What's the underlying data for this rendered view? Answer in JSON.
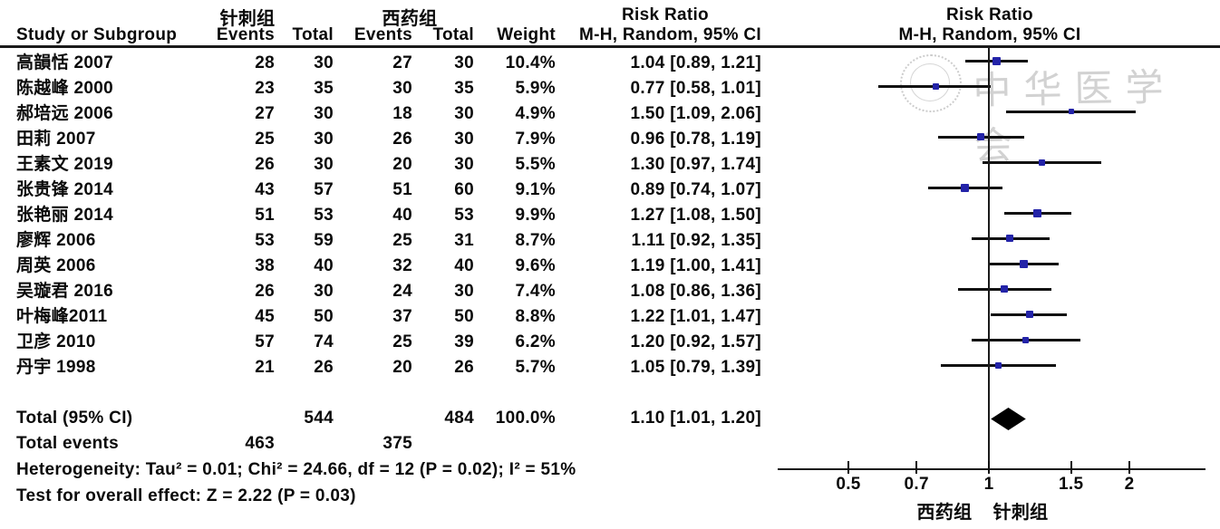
{
  "header": {
    "group1": "针刺组",
    "group2": "西药组",
    "study_col": "Study or Subgroup",
    "events_col": "Events",
    "total_col": "Total",
    "weight_col": "Weight",
    "risk_ratio_left": "Risk Ratio",
    "method_left": "M-H, Random, 95% CI",
    "risk_ratio_right": "Risk Ratio",
    "method_right": "M-H, Random, 95% CI"
  },
  "totals": {
    "label": "Total (95% CI)",
    "total1": "544",
    "total2": "484",
    "weight": "100.0%",
    "ci_text": "1.10 [1.01, 1.20]",
    "events_label": "Total events",
    "events1": "463",
    "events2": "375"
  },
  "footnotes": {
    "heterogeneity": "Heterogeneity: Tau² = 0.01; Chi² = 24.66, df = 12 (P = 0.02); I² = 51%",
    "overall_effect": "Test for overall effect: Z = 2.22 (P = 0.03)"
  },
  "axis": {
    "tick_labels": [
      "0.5",
      "0.7",
      "1",
      "1.5",
      "2"
    ],
    "favours_left": "西药组",
    "favours_right": "针刺组"
  },
  "watermark": {
    "text": "中华医学会",
    "seal": "chinese-medical-association-seal"
  },
  "colors": {
    "marker_blue": "#2323a8",
    "diamond_black": "#000000",
    "line_black": "#111111",
    "watermark_gray": "#d2d2d2"
  },
  "chart_data": {
    "type": "scatter",
    "subtype": "forest-plot-meta-analysis",
    "title": "Risk Ratio M-H, Random, 95% CI",
    "x_scale": "log",
    "x_ticks": [
      0.5,
      0.7,
      1,
      1.5,
      2
    ],
    "xlim": [
      0.35,
      2.9
    ],
    "legend_position": "none",
    "grid": false,
    "studies": [
      {
        "name": "高韻恬 2007",
        "events1": 28,
        "total1": 30,
        "events2": 27,
        "total2": 30,
        "weight": "10.4%",
        "weight_pct": 10.4,
        "rr": 1.04,
        "ci_low": 0.89,
        "ci_high": 1.21,
        "ci_text": "1.04 [0.89, 1.21]"
      },
      {
        "name": "陈越峰 2000",
        "events1": 23,
        "total1": 35,
        "events2": 30,
        "total2": 35,
        "weight": "5.9%",
        "weight_pct": 5.9,
        "rr": 0.77,
        "ci_low": 0.58,
        "ci_high": 1.01,
        "ci_text": "0.77 [0.58, 1.01]"
      },
      {
        "name": "郝培远 2006",
        "events1": 27,
        "total1": 30,
        "events2": 18,
        "total2": 30,
        "weight": "4.9%",
        "weight_pct": 4.9,
        "rr": 1.5,
        "ci_low": 1.09,
        "ci_high": 2.06,
        "ci_text": "1.50 [1.09, 2.06]"
      },
      {
        "name": "田莉 2007",
        "events1": 25,
        "total1": 30,
        "events2": 26,
        "total2": 30,
        "weight": "7.9%",
        "weight_pct": 7.9,
        "rr": 0.96,
        "ci_low": 0.78,
        "ci_high": 1.19,
        "ci_text": "0.96 [0.78, 1.19]"
      },
      {
        "name": "王素文 2019",
        "events1": 26,
        "total1": 30,
        "events2": 20,
        "total2": 30,
        "weight": "5.5%",
        "weight_pct": 5.5,
        "rr": 1.3,
        "ci_low": 0.97,
        "ci_high": 1.74,
        "ci_text": "1.30 [0.97, 1.74]"
      },
      {
        "name": "张贵锋 2014",
        "events1": 43,
        "total1": 57,
        "events2": 51,
        "total2": 60,
        "weight": "9.1%",
        "weight_pct": 9.1,
        "rr": 0.89,
        "ci_low": 0.74,
        "ci_high": 1.07,
        "ci_text": "0.89 [0.74, 1.07]"
      },
      {
        "name": "张艳丽 2014",
        "events1": 51,
        "total1": 53,
        "events2": 40,
        "total2": 53,
        "weight": "9.9%",
        "weight_pct": 9.9,
        "rr": 1.27,
        "ci_low": 1.08,
        "ci_high": 1.5,
        "ci_text": "1.27 [1.08, 1.50]"
      },
      {
        "name": "廖辉 2006",
        "events1": 53,
        "total1": 59,
        "events2": 25,
        "total2": 31,
        "weight": "8.7%",
        "weight_pct": 8.7,
        "rr": 1.11,
        "ci_low": 0.92,
        "ci_high": 1.35,
        "ci_text": "1.11 [0.92, 1.35]"
      },
      {
        "name": "周英 2006",
        "events1": 38,
        "total1": 40,
        "events2": 32,
        "total2": 40,
        "weight": "9.6%",
        "weight_pct": 9.6,
        "rr": 1.19,
        "ci_low": 1.0,
        "ci_high": 1.41,
        "ci_text": "1.19 [1.00, 1.41]"
      },
      {
        "name": "吴璇君 2016",
        "events1": 26,
        "total1": 30,
        "events2": 24,
        "total2": 30,
        "weight": "7.4%",
        "weight_pct": 7.4,
        "rr": 1.08,
        "ci_low": 0.86,
        "ci_high": 1.36,
        "ci_text": "1.08 [0.86, 1.36]"
      },
      {
        "name": "叶梅峰2011",
        "events1": 45,
        "total1": 50,
        "events2": 37,
        "total2": 50,
        "weight": "8.8%",
        "weight_pct": 8.8,
        "rr": 1.22,
        "ci_low": 1.01,
        "ci_high": 1.47,
        "ci_text": "1.22 [1.01, 1.47]"
      },
      {
        "name": "卫彦 2010",
        "events1": 57,
        "total1": 74,
        "events2": 25,
        "total2": 39,
        "weight": "6.2%",
        "weight_pct": 6.2,
        "rr": 1.2,
        "ci_low": 0.92,
        "ci_high": 1.57,
        "ci_text": "1.20 [0.92, 1.57]"
      },
      {
        "name": "丹宇 1998",
        "events1": 21,
        "total1": 26,
        "events2": 20,
        "total2": 26,
        "weight": "5.7%",
        "weight_pct": 5.7,
        "rr": 1.05,
        "ci_low": 0.79,
        "ci_high": 1.39,
        "ci_text": "1.05 [0.79, 1.39]"
      }
    ],
    "total": {
      "rr": 1.1,
      "ci_low": 1.01,
      "ci_high": 1.2,
      "total1": 544,
      "total2": 484,
      "events1": 463,
      "events2": 375,
      "weight": "100.0%"
    }
  }
}
